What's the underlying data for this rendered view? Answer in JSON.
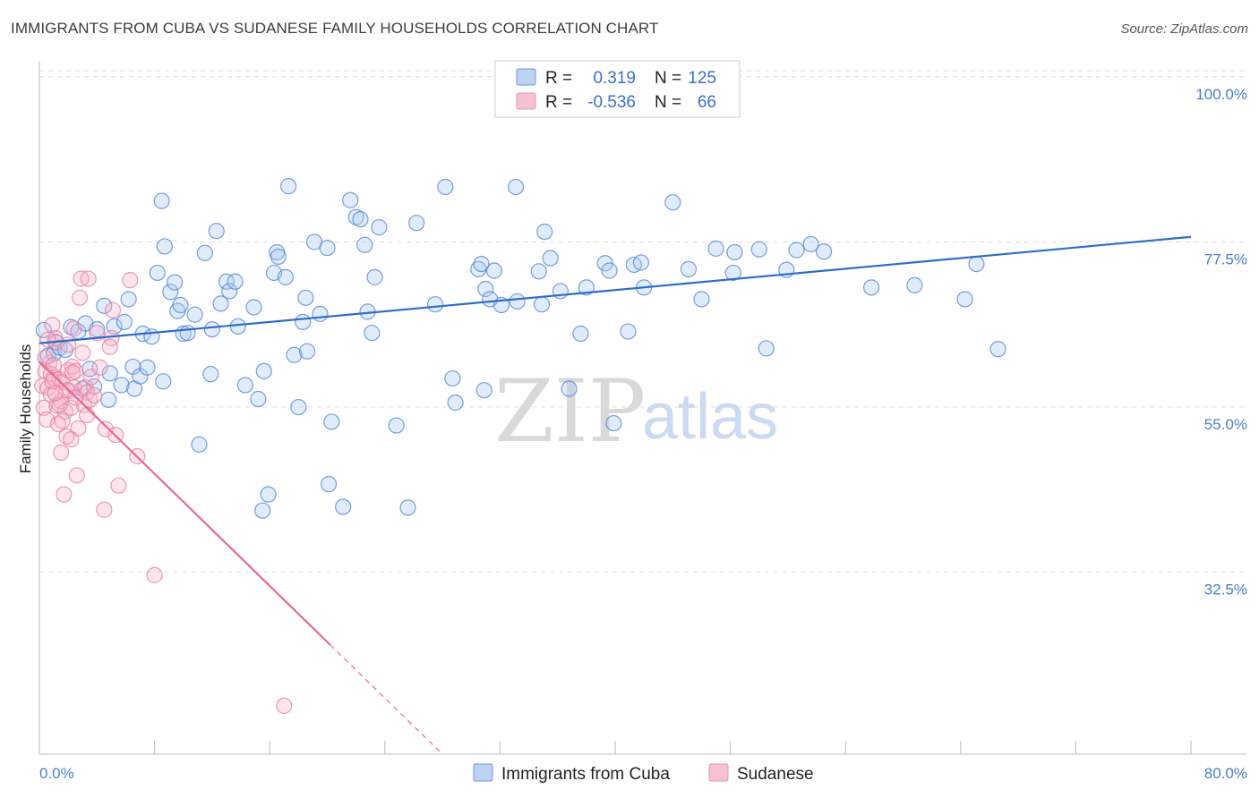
{
  "title": "IMMIGRANTS FROM CUBA VS SUDANESE FAMILY HOUSEHOLDS CORRELATION CHART",
  "source": "Source: ZipAtlas.com",
  "watermark": {
    "zip": "ZIP",
    "atlas": "atlas"
  },
  "colors": {
    "cuba": "#4a80d0",
    "cuba_fill": "rgba(170,200,240,0.35)",
    "cuba_line": "#2e6cc8",
    "sudanese": "#e77ba0",
    "sudanese_fill": "rgba(245,180,200,0.35)",
    "sudanese_line": "#e66a94",
    "grid": "#dddddd",
    "tick_text": "#4a7fc9"
  },
  "legend": {
    "r_label": "R =",
    "n_label": "N =",
    "rows": [
      {
        "r": "0.319",
        "n": "125"
      },
      {
        "r": "-0.536",
        "n": "66"
      }
    ]
  },
  "bottom_legend": [
    "Immigrants from Cuba",
    "Sudanese"
  ],
  "chart_data": {
    "type": "scatter",
    "xlabel": "",
    "ylabel": "Family Households",
    "xlim": [
      0,
      80
    ],
    "ylim": [
      10,
      104
    ],
    "x_tick_labels": [
      "0.0%",
      "80.0%"
    ],
    "y_ticks": [
      32.5,
      55.0,
      77.5,
      100.0
    ],
    "y_tick_labels": [
      "32.5%",
      "55.0%",
      "77.5%",
      "100.0%"
    ],
    "grid": true,
    "legend_position": "top-center",
    "series": [
      {
        "name": "Immigrants from Cuba",
        "trend": {
          "x0": 0,
          "y0": 66.0,
          "x1": 80,
          "y1": 80.5,
          "x_end_solid": 80
        },
        "points": [
          [
            0.6,
            64.3
          ],
          [
            1.0,
            64.6
          ],
          [
            1.1,
            66.2
          ],
          [
            1.4,
            65.4
          ],
          [
            1.8,
            65.1
          ],
          [
            2.2,
            68.2
          ],
          [
            2.7,
            67.6
          ],
          [
            3.0,
            59.8
          ],
          [
            3.2,
            68.7
          ],
          [
            3.5,
            62.5
          ],
          [
            3.8,
            60.1
          ],
          [
            4.0,
            67.9
          ],
          [
            4.5,
            71.1
          ],
          [
            4.8,
            58.3
          ],
          [
            4.9,
            61.9
          ],
          [
            5.2,
            68.3
          ],
          [
            5.7,
            60.3
          ],
          [
            5.9,
            68.9
          ],
          [
            6.2,
            72.0
          ],
          [
            6.5,
            62.8
          ],
          [
            6.6,
            59.8
          ],
          [
            7.0,
            61.5
          ],
          [
            7.2,
            67.3
          ],
          [
            7.5,
            62.7
          ],
          [
            7.8,
            66.9
          ],
          [
            8.2,
            75.6
          ],
          [
            8.5,
            85.4
          ],
          [
            8.6,
            60.8
          ],
          [
            8.7,
            79.2
          ],
          [
            9.1,
            73.0
          ],
          [
            9.4,
            74.3
          ],
          [
            9.6,
            70.4
          ],
          [
            9.8,
            71.2
          ],
          [
            10.0,
            67.3
          ],
          [
            10.3,
            67.4
          ],
          [
            10.8,
            69.9
          ],
          [
            11.1,
            52.2
          ],
          [
            11.5,
            78.3
          ],
          [
            11.9,
            61.8
          ],
          [
            12.0,
            67.9
          ],
          [
            12.3,
            81.3
          ],
          [
            12.6,
            71.4
          ],
          [
            13.0,
            74.4
          ],
          [
            13.2,
            73.1
          ],
          [
            13.6,
            74.4
          ],
          [
            13.8,
            68.3
          ],
          [
            14.3,
            60.3
          ],
          [
            14.9,
            70.9
          ],
          [
            15.2,
            58.4
          ],
          [
            15.6,
            62.2
          ],
          [
            15.9,
            45.4
          ],
          [
            15.5,
            43.2
          ],
          [
            16.3,
            75.6
          ],
          [
            16.5,
            78.4
          ],
          [
            16.6,
            77.8
          ],
          [
            17.1,
            75.0
          ],
          [
            17.3,
            87.4
          ],
          [
            17.7,
            64.4
          ],
          [
            18.0,
            57.3
          ],
          [
            18.3,
            68.9
          ],
          [
            18.5,
            72.2
          ],
          [
            18.6,
            64.9
          ],
          [
            19.1,
            79.8
          ],
          [
            19.5,
            70.0
          ],
          [
            20.0,
            79.0
          ],
          [
            20.3,
            55.3
          ],
          [
            20.1,
            46.8
          ],
          [
            21.1,
            43.7
          ],
          [
            21.6,
            85.5
          ],
          [
            22.0,
            83.2
          ],
          [
            22.3,
            82.9
          ],
          [
            22.6,
            79.4
          ],
          [
            22.8,
            70.3
          ],
          [
            23.1,
            67.4
          ],
          [
            23.3,
            75.0
          ],
          [
            23.6,
            81.8
          ],
          [
            24.8,
            54.8
          ],
          [
            25.6,
            43.6
          ],
          [
            26.2,
            82.4
          ],
          [
            27.5,
            71.3
          ],
          [
            28.2,
            87.3
          ],
          [
            28.7,
            61.2
          ],
          [
            28.9,
            57.9
          ],
          [
            30.5,
            76.1
          ],
          [
            30.7,
            76.8
          ],
          [
            30.9,
            59.6
          ],
          [
            31.0,
            73.4
          ],
          [
            31.3,
            72.0
          ],
          [
            31.6,
            75.9
          ],
          [
            32.1,
            71.2
          ],
          [
            33.1,
            87.3
          ],
          [
            33.2,
            71.7
          ],
          [
            34.7,
            75.8
          ],
          [
            34.9,
            71.3
          ],
          [
            35.1,
            81.2
          ],
          [
            35.5,
            77.6
          ],
          [
            36.2,
            73.1
          ],
          [
            36.8,
            59.8
          ],
          [
            37.6,
            67.3
          ],
          [
            38.0,
            73.6
          ],
          [
            39.3,
            76.9
          ],
          [
            39.6,
            75.9
          ],
          [
            39.9,
            55.1
          ],
          [
            40.9,
            67.6
          ],
          [
            41.3,
            76.7
          ],
          [
            41.8,
            77.0
          ],
          [
            42.0,
            73.6
          ],
          [
            44.0,
            85.2
          ],
          [
            45.1,
            76.1
          ],
          [
            46.0,
            72.0
          ],
          [
            47.0,
            78.9
          ],
          [
            48.2,
            75.6
          ],
          [
            48.3,
            78.4
          ],
          [
            50.0,
            78.8
          ],
          [
            50.5,
            65.3
          ],
          [
            51.9,
            76.0
          ],
          [
            52.6,
            78.7
          ],
          [
            53.6,
            79.5
          ],
          [
            54.5,
            78.5
          ],
          [
            57.8,
            73.6
          ],
          [
            60.8,
            73.9
          ],
          [
            64.3,
            72.0
          ],
          [
            65.1,
            76.8
          ],
          [
            66.6,
            65.2
          ],
          [
            0.3,
            67.8
          ]
        ]
      },
      {
        "name": "Sudanese",
        "trend": {
          "x0": 0,
          "y0": 63.5,
          "x1": 28,
          "y1": 10.0,
          "x_end_solid": 20.2
        },
        "points": [
          [
            0.2,
            60.2
          ],
          [
            0.3,
            57.2
          ],
          [
            0.4,
            62.2
          ],
          [
            0.5,
            55.6
          ],
          [
            0.6,
            59.9
          ],
          [
            0.7,
            63.3
          ],
          [
            0.8,
            61.8
          ],
          [
            0.9,
            68.5
          ],
          [
            1.0,
            61.3
          ],
          [
            1.1,
            66.7
          ],
          [
            1.2,
            57.5
          ],
          [
            1.3,
            55.0
          ],
          [
            1.4,
            61.1
          ],
          [
            1.5,
            58.1
          ],
          [
            1.5,
            51.1
          ],
          [
            1.6,
            60.7
          ],
          [
            1.7,
            45.4
          ],
          [
            1.8,
            56.7
          ],
          [
            1.9,
            53.3
          ],
          [
            2.0,
            62.3
          ],
          [
            2.1,
            59.5
          ],
          [
            2.2,
            57.2
          ],
          [
            2.3,
            62.8
          ],
          [
            2.4,
            60.0
          ],
          [
            2.5,
            62.2
          ],
          [
            2.6,
            48.0
          ],
          [
            2.7,
            54.4
          ],
          [
            2.8,
            72.2
          ],
          [
            2.9,
            74.8
          ],
          [
            3.0,
            64.7
          ],
          [
            3.1,
            57.6
          ],
          [
            3.2,
            60.0
          ],
          [
            3.3,
            59.3
          ],
          [
            3.4,
            74.8
          ],
          [
            3.5,
            58.3
          ],
          [
            3.6,
            61.4
          ],
          [
            4.0,
            67.4
          ],
          [
            4.5,
            43.3
          ],
          [
            4.6,
            54.3
          ],
          [
            5.0,
            66.7
          ],
          [
            5.1,
            70.5
          ],
          [
            5.3,
            53.5
          ],
          [
            5.5,
            46.6
          ],
          [
            6.3,
            74.6
          ],
          [
            6.8,
            50.6
          ],
          [
            8.0,
            34.4
          ],
          [
            17.0,
            16.6
          ],
          [
            0.8,
            59.0
          ],
          [
            1.2,
            66.1
          ],
          [
            2.0,
            65.8
          ],
          [
            2.2,
            52.9
          ],
          [
            2.4,
            68.0
          ],
          [
            3.8,
            58.9
          ],
          [
            4.9,
            65.5
          ],
          [
            0.4,
            64.0
          ],
          [
            0.6,
            66.5
          ],
          [
            1.9,
            59.6
          ],
          [
            2.5,
            58.6
          ],
          [
            3.3,
            56.2
          ],
          [
            1.0,
            63.0
          ],
          [
            1.4,
            57.6
          ],
          [
            1.6,
            55.4
          ],
          [
            2.3,
            62.0
          ],
          [
            0.9,
            60.8
          ],
          [
            1.1,
            59.2
          ],
          [
            4.2,
            62.7
          ]
        ]
      }
    ]
  }
}
